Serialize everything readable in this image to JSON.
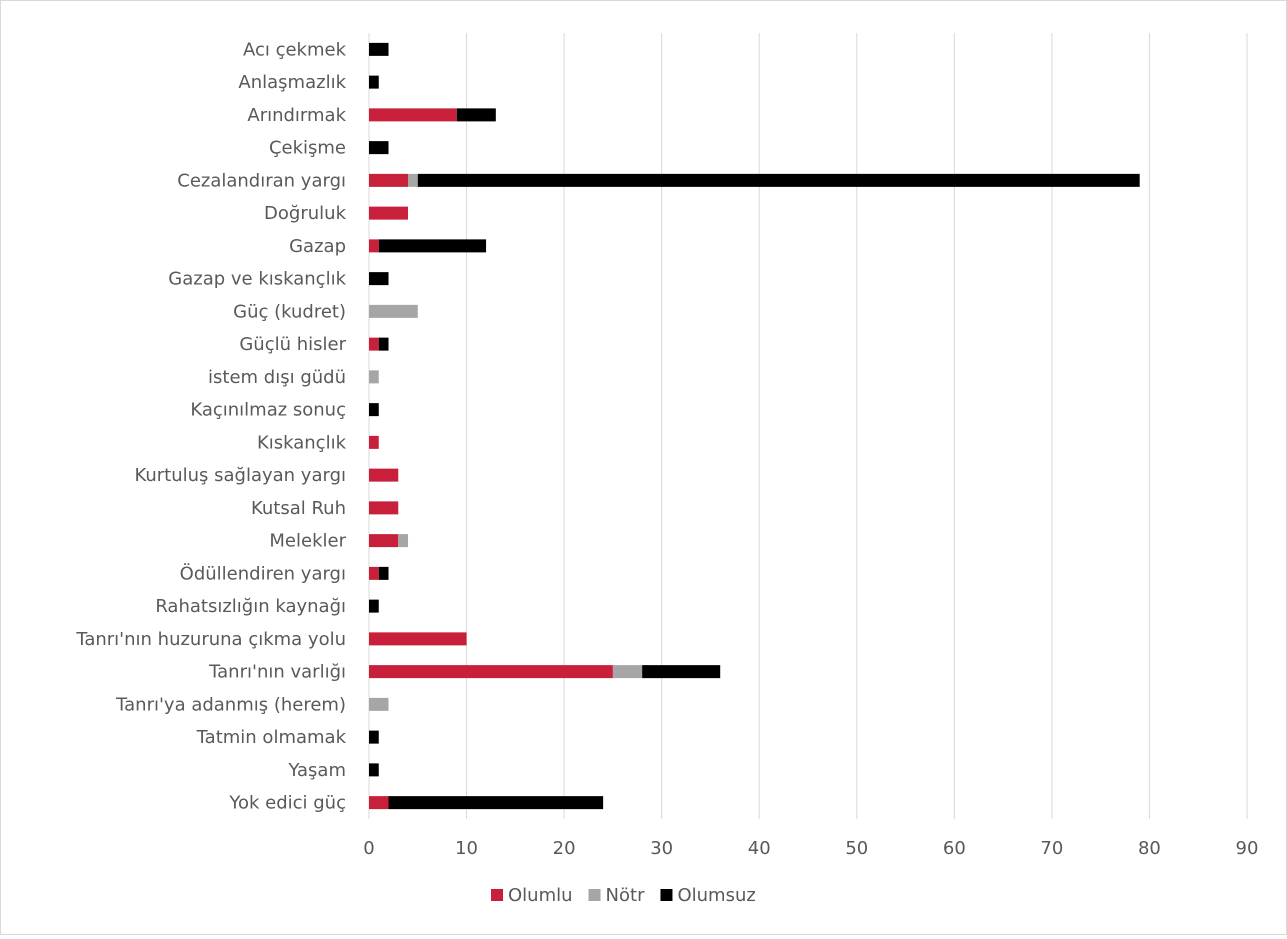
{
  "chart_data": {
    "type": "bar",
    "orientation": "horizontal",
    "stacked": true,
    "title": "",
    "xlabel": "",
    "ylabel": "",
    "xlim": [
      0,
      90
    ],
    "x_ticks": [
      0,
      10,
      20,
      30,
      40,
      50,
      60,
      70,
      80,
      90
    ],
    "grid": true,
    "legend_position": "bottom",
    "categories": [
      "Acı çekmek",
      "Anlaşmazlık",
      "Arındırmak",
      "Çekişme",
      "Cezalandıran yargı",
      "Doğruluk",
      "Gazap",
      "Gazap ve kıskançlık",
      "Güç (kudret)",
      "Güçlü hisler",
      "istem dışı güdü",
      "Kaçınılmaz sonuç",
      "Kıskançlık",
      "Kurtuluş sağlayan yargı",
      "Kutsal Ruh",
      "Melekler",
      "Ödüllendiren yargı",
      "Rahatsızlığın kaynağı",
      "Tanrı'nın huzuruna çıkma yolu",
      "Tanrı'nın varlığı",
      "Tanrı'ya adanmış (herem)",
      "Tatmin olmamak",
      "Yaşam",
      "Yok edici güç"
    ],
    "series": [
      {
        "name": "Olumlu",
        "color": "#c8203a",
        "values": [
          0,
          0,
          9,
          0,
          4,
          4,
          1,
          0,
          0,
          1,
          0,
          0,
          1,
          3,
          3,
          3,
          1,
          0,
          10,
          25,
          0,
          0,
          0,
          2
        ]
      },
      {
        "name": "Nötr",
        "color": "#a6a6a6",
        "values": [
          0,
          0,
          0,
          0,
          1,
          0,
          0,
          0,
          5,
          0,
          1,
          0,
          0,
          0,
          0,
          1,
          0,
          0,
          0,
          3,
          2,
          0,
          0,
          0
        ]
      },
      {
        "name": "Olumsuz",
        "color": "#000000",
        "values": [
          2,
          1,
          4,
          2,
          74,
          0,
          11,
          2,
          0,
          1,
          0,
          1,
          0,
          0,
          0,
          0,
          1,
          1,
          0,
          8,
          0,
          1,
          1,
          22
        ]
      }
    ]
  }
}
